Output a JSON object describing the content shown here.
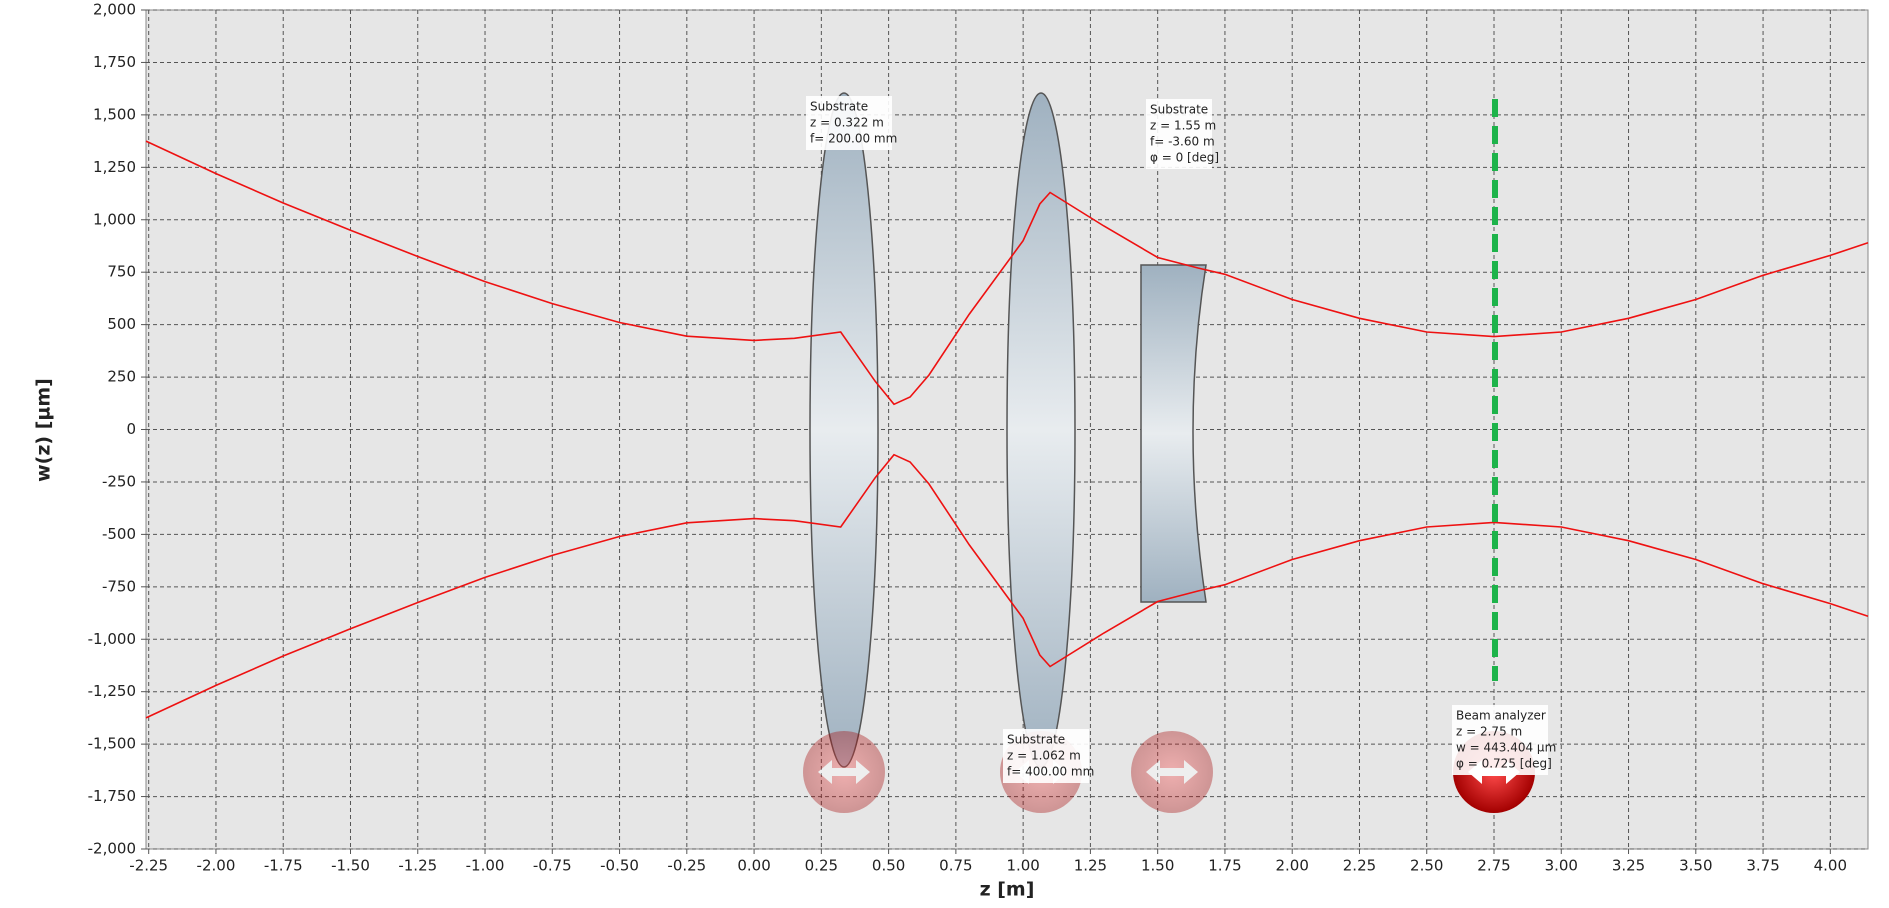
{
  "chart_data": {
    "type": "line",
    "xlabel": "z [m]",
    "ylabel": "w(z) [µm]",
    "x": [
      -2.26,
      -2.0,
      -1.75,
      -1.5,
      -1.25,
      -1.0,
      -0.75,
      -0.5,
      -0.25,
      0.0,
      0.15,
      0.322,
      0.45,
      0.52,
      0.58,
      0.65,
      0.8,
      1.0,
      1.062,
      1.1,
      1.3,
      1.5,
      1.65,
      1.75,
      2.0,
      2.25,
      2.5,
      2.75,
      3.0,
      3.25,
      3.5,
      3.75,
      4.0,
      4.14
    ],
    "series": [
      {
        "color": "#ee1111",
        "values": [
          1375,
          1220,
          1080,
          950,
          825,
          705,
          600,
          510,
          445,
          425,
          435,
          465,
          230,
          120,
          155,
          260,
          550,
          900,
          1075,
          1130,
          970,
          820,
          770,
          740,
          620,
          530,
          465,
          443,
          465,
          530,
          620,
          735,
          830,
          890
        ]
      },
      {
        "color": "#ee1111",
        "values": [
          -1375,
          -1220,
          -1080,
          -950,
          -825,
          -705,
          -600,
          -510,
          -445,
          -425,
          -435,
          -465,
          -230,
          -120,
          -155,
          -260,
          -550,
          -900,
          -1075,
          -1130,
          -970,
          -820,
          -770,
          -740,
          -620,
          -530,
          -465,
          -443,
          -465,
          -530,
          -620,
          -735,
          -830,
          -890
        ]
      }
    ],
    "xlim": [
      -2.26,
      4.14
    ],
    "xticks": [
      {
        "value": -2.25,
        "label": "-2.25"
      },
      {
        "value": -2.0,
        "label": "-2.00"
      },
      {
        "value": -1.75,
        "label": "-1.75"
      },
      {
        "value": -1.5,
        "label": "-1.50"
      },
      {
        "value": -1.25,
        "label": "-1.25"
      },
      {
        "value": -1.0,
        "label": "-1.00"
      },
      {
        "value": -0.75,
        "label": "-0.75"
      },
      {
        "value": -0.5,
        "label": "-0.50"
      },
      {
        "value": -0.25,
        "label": "-0.25"
      },
      {
        "value": 0,
        "label": "0.00"
      },
      {
        "value": 0.25,
        "label": "0.25"
      },
      {
        "value": 0.5,
        "label": "0.50"
      },
      {
        "value": 0.75,
        "label": "0.75"
      },
      {
        "value": 1.0,
        "label": "1.00"
      },
      {
        "value": 1.25,
        "label": "1.25"
      },
      {
        "value": 1.5,
        "label": "1.50"
      },
      {
        "value": 1.75,
        "label": "1.75"
      },
      {
        "value": 2.0,
        "label": "2.00"
      },
      {
        "value": 2.25,
        "label": "2.25"
      },
      {
        "value": 2.5,
        "label": "2.50"
      },
      {
        "value": 2.75,
        "label": "2.75"
      },
      {
        "value": 3.0,
        "label": "3.00"
      },
      {
        "value": 3.25,
        "label": "3.25"
      },
      {
        "value": 3.5,
        "label": "3.50"
      },
      {
        "value": 3.75,
        "label": "3.75"
      },
      {
        "value": 4.0,
        "label": "4.00"
      }
    ],
    "ylim": [
      -2000,
      2000
    ],
    "yticks": [
      {
        "value": -2000,
        "label": "-2,000"
      },
      {
        "value": -1750,
        "label": "-1,750"
      },
      {
        "value": -1500,
        "label": "-1,500"
      },
      {
        "value": -1250,
        "label": "-1,250"
      },
      {
        "value": -1000,
        "label": "-1,000"
      },
      -750,
      -500,
      -250,
      0,
      250,
      500,
      750,
      {
        "value": 1000,
        "label": "1,000"
      },
      {
        "value": 1250,
        "label": "1,250"
      },
      {
        "value": 1500,
        "label": "1,500"
      },
      {
        "value": 1750,
        "label": "1,750"
      },
      {
        "value": 2000,
        "label": "2,000"
      }
    ],
    "grid": true,
    "annotations": [
      [
        "Substrate",
        "z = 0.322 m",
        "f= 200.00 mm"
      ],
      [
        "Substrate",
        "z = 1.55 m",
        "f= -3.60 m",
        "φ = 0 [deg]"
      ],
      [
        "Substrate",
        "z = 1.062 m",
        "f= 400.00 mm"
      ],
      [
        "Beam analyzer",
        "z = 2.75 m",
        "w = 443.404 µm",
        "φ = 0.725 [deg]"
      ]
    ]
  }
}
